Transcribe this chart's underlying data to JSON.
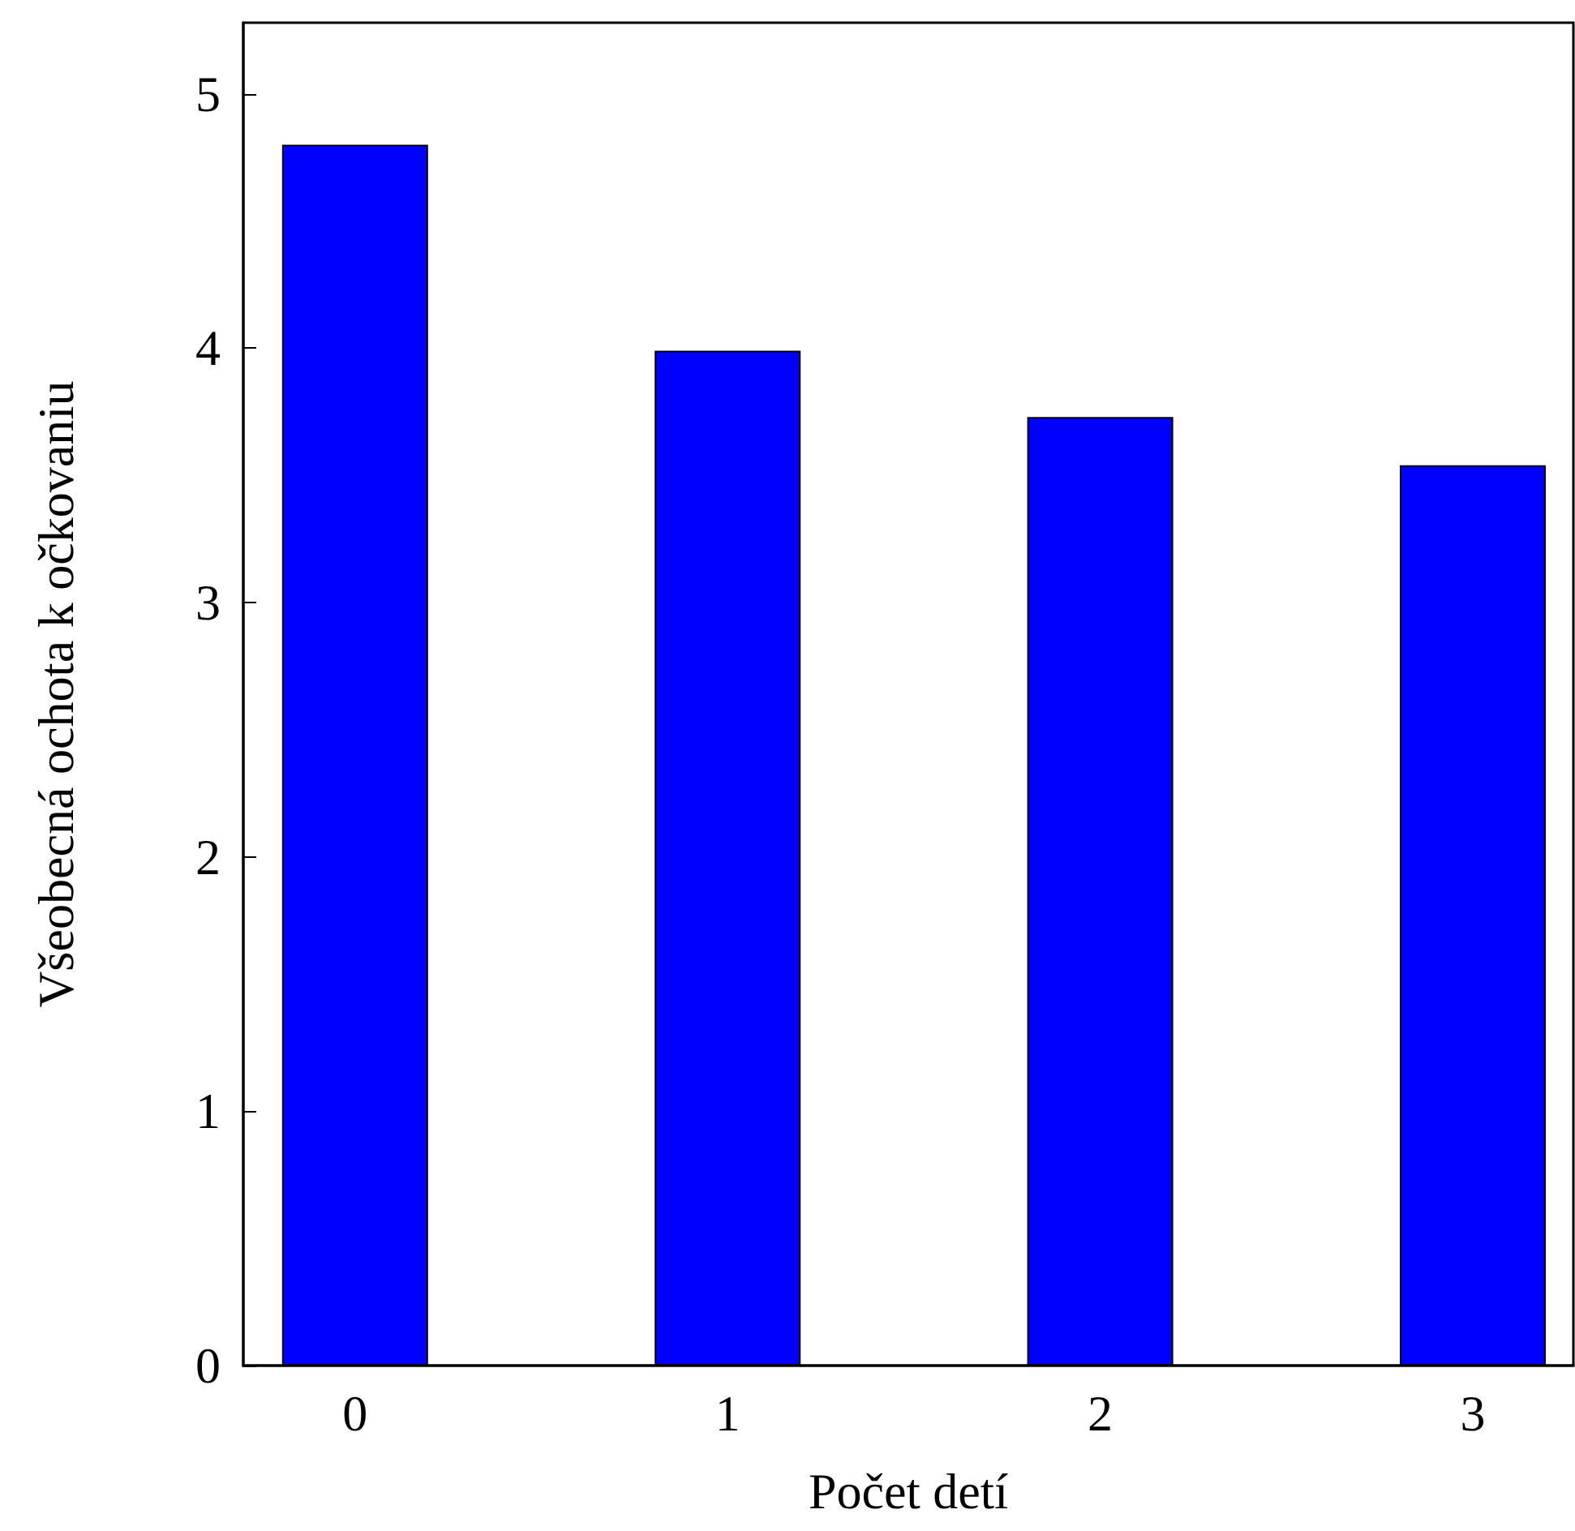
{
  "chart_data": {
    "type": "bar",
    "xlabel": "Počet detí",
    "ylabel": "Všeobecná ochota k očkovaniu",
    "x": [
      0,
      1,
      2,
      3
    ],
    "values": [
      4.8,
      3.99,
      3.73,
      3.54
    ],
    "color": "#0000ff",
    "xlim": [
      -0.3,
      3.27
    ],
    "xticks": [
      0,
      1,
      2,
      3
    ],
    "ylim": [
      0,
      5.28
    ],
    "yticks": [
      0,
      1,
      2,
      3,
      4,
      5
    ]
  }
}
